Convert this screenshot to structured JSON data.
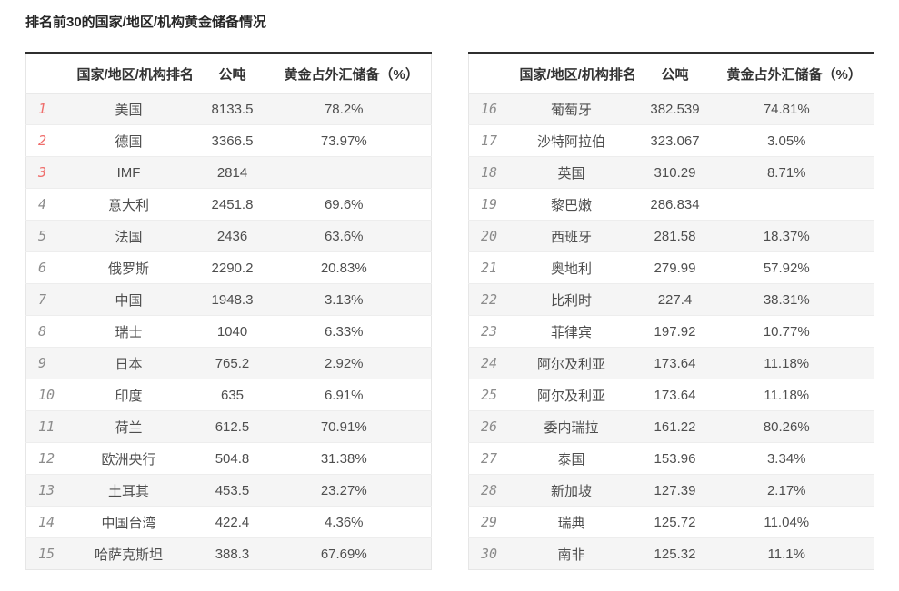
{
  "page": {
    "title": "排名前30的国家/地区/机构黄金储备情况"
  },
  "colors": {
    "accent_red": "#ef6e6c",
    "rank_gray": "#8c8c8c",
    "stripe": "#f5f5f5",
    "header_top_border": "#2f2f2f"
  },
  "tables": [
    {
      "headers": {
        "rank": "",
        "name": "国家/地区/机构排名",
        "tonnes": "公吨",
        "pct": "黄金占外汇储备（%）"
      },
      "rows": [
        {
          "rank": "1",
          "name": "美国",
          "tonnes": "8133.5",
          "pct": "78.2%"
        },
        {
          "rank": "2",
          "name": "德国",
          "tonnes": "3366.5",
          "pct": "73.97%"
        },
        {
          "rank": "3",
          "name": "IMF",
          "tonnes": "2814",
          "pct": ""
        },
        {
          "rank": "4",
          "name": "意大利",
          "tonnes": "2451.8",
          "pct": "69.6%"
        },
        {
          "rank": "5",
          "name": "法国",
          "tonnes": "2436",
          "pct": "63.6%"
        },
        {
          "rank": "6",
          "name": "俄罗斯",
          "tonnes": "2290.2",
          "pct": "20.83%"
        },
        {
          "rank": "7",
          "name": "中国",
          "tonnes": "1948.3",
          "pct": "3.13%"
        },
        {
          "rank": "8",
          "name": "瑞士",
          "tonnes": "1040",
          "pct": "6.33%"
        },
        {
          "rank": "9",
          "name": "日本",
          "tonnes": "765.2",
          "pct": "2.92%"
        },
        {
          "rank": "10",
          "name": "印度",
          "tonnes": "635",
          "pct": "6.91%"
        },
        {
          "rank": "11",
          "name": "荷兰",
          "tonnes": "612.5",
          "pct": "70.91%"
        },
        {
          "rank": "12",
          "name": "欧洲央行",
          "tonnes": "504.8",
          "pct": "31.38%"
        },
        {
          "rank": "13",
          "name": "土耳其",
          "tonnes": "453.5",
          "pct": "23.27%"
        },
        {
          "rank": "14",
          "name": "中国台湾",
          "tonnes": "422.4",
          "pct": "4.36%"
        },
        {
          "rank": "15",
          "name": "哈萨克斯坦",
          "tonnes": "388.3",
          "pct": "67.69%"
        }
      ]
    },
    {
      "headers": {
        "rank": "",
        "name": "国家/地区/机构排名",
        "tonnes": "公吨",
        "pct": "黄金占外汇储备（%）"
      },
      "rows": [
        {
          "rank": "16",
          "name": "葡萄牙",
          "tonnes": "382.539",
          "pct": "74.81%"
        },
        {
          "rank": "17",
          "name": "沙特阿拉伯",
          "tonnes": "323.067",
          "pct": "3.05%"
        },
        {
          "rank": "18",
          "name": "英国",
          "tonnes": "310.29",
          "pct": "8.71%"
        },
        {
          "rank": "19",
          "name": "黎巴嫩",
          "tonnes": "286.834",
          "pct": ""
        },
        {
          "rank": "20",
          "name": "西班牙",
          "tonnes": "281.58",
          "pct": "18.37%"
        },
        {
          "rank": "21",
          "name": "奥地利",
          "tonnes": "279.99",
          "pct": "57.92%"
        },
        {
          "rank": "22",
          "name": "比利时",
          "tonnes": "227.4",
          "pct": "38.31%"
        },
        {
          "rank": "23",
          "name": "菲律宾",
          "tonnes": "197.92",
          "pct": "10.77%"
        },
        {
          "rank": "24",
          "name": "阿尔及利亚",
          "tonnes": "173.64",
          "pct": "11.18%"
        },
        {
          "rank": "25",
          "name": "阿尔及利亚",
          "tonnes": "173.64",
          "pct": "11.18%"
        },
        {
          "rank": "26",
          "name": "委内瑞拉",
          "tonnes": "161.22",
          "pct": "80.26%"
        },
        {
          "rank": "27",
          "name": "泰国",
          "tonnes": "153.96",
          "pct": "3.34%"
        },
        {
          "rank": "28",
          "name": "新加坡",
          "tonnes": "127.39",
          "pct": "2.17%"
        },
        {
          "rank": "29",
          "name": "瑞典",
          "tonnes": "125.72",
          "pct": "11.04%"
        },
        {
          "rank": "30",
          "name": "南非",
          "tonnes": "125.32",
          "pct": "11.1%"
        }
      ]
    }
  ]
}
